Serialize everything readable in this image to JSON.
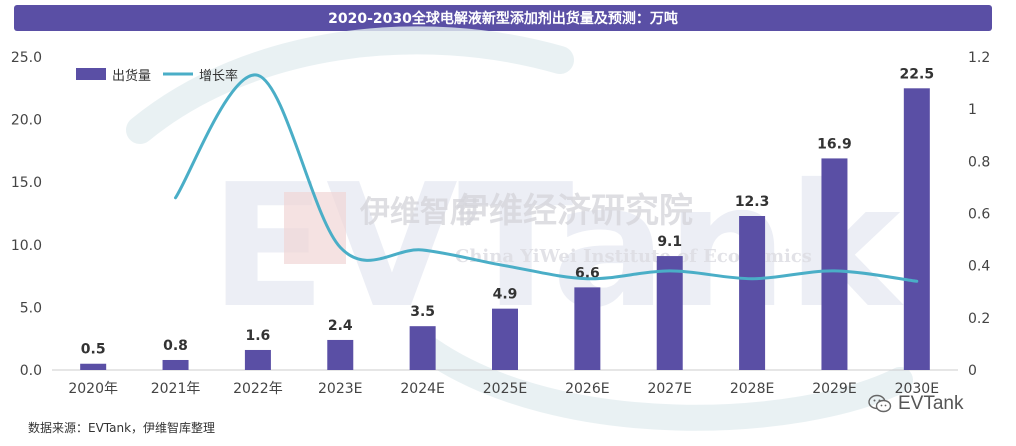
{
  "page": {
    "title": "2020-2030全球电解液新型添加剂出货量及预测：万吨",
    "source": "数据来源：EVTank，伊维智库整理",
    "watermark": {
      "brand": "EVTank",
      "cn_logo": "伊维智库",
      "cn_name": "伊维经济研究院",
      "en_name": "China YiWei Institute of Economics",
      "bg_text": "EVTank"
    }
  },
  "colors": {
    "title_bg": "#5a4fa5",
    "bar": "#5a4fa5",
    "line": "#4aaec7",
    "text": "#333333"
  },
  "chart_data": {
    "type": "bar+line",
    "categories": [
      "2020年",
      "2021年",
      "2022年",
      "2023E",
      "2024E",
      "2025E",
      "2026E",
      "2027E",
      "2028E",
      "2029E",
      "2030E"
    ],
    "series": [
      {
        "name": "出货量",
        "type": "bar",
        "axis": "left",
        "values": [
          0.5,
          0.8,
          1.6,
          2.4,
          3.5,
          4.9,
          6.6,
          9.1,
          12.3,
          16.9,
          22.5
        ],
        "labels": [
          "0.5",
          "0.8",
          "1.6",
          "2.4",
          "3.5",
          "4.9",
          "6.6",
          "9.1",
          "12.3",
          "16.9",
          "22.5"
        ]
      },
      {
        "name": "增长率",
        "type": "line",
        "axis": "right",
        "smooth": true,
        "values": [
          null,
          0.66,
          1.13,
          0.47,
          0.46,
          0.4,
          0.35,
          0.38,
          0.35,
          0.38,
          0.34
        ]
      }
    ],
    "y_left": {
      "min": 0,
      "max": 25,
      "step": 5,
      "ticks": [
        "0.0",
        "5.0",
        "10.0",
        "15.0",
        "20.0",
        "25.0"
      ]
    },
    "y_right": {
      "min": 0,
      "max": 1.2,
      "step": 0.2,
      "ticks": [
        "0",
        "0.2",
        "0.4",
        "0.6",
        "0.8",
        "1",
        "1.2"
      ]
    },
    "legend": {
      "position": "top-left"
    },
    "grid": false
  }
}
